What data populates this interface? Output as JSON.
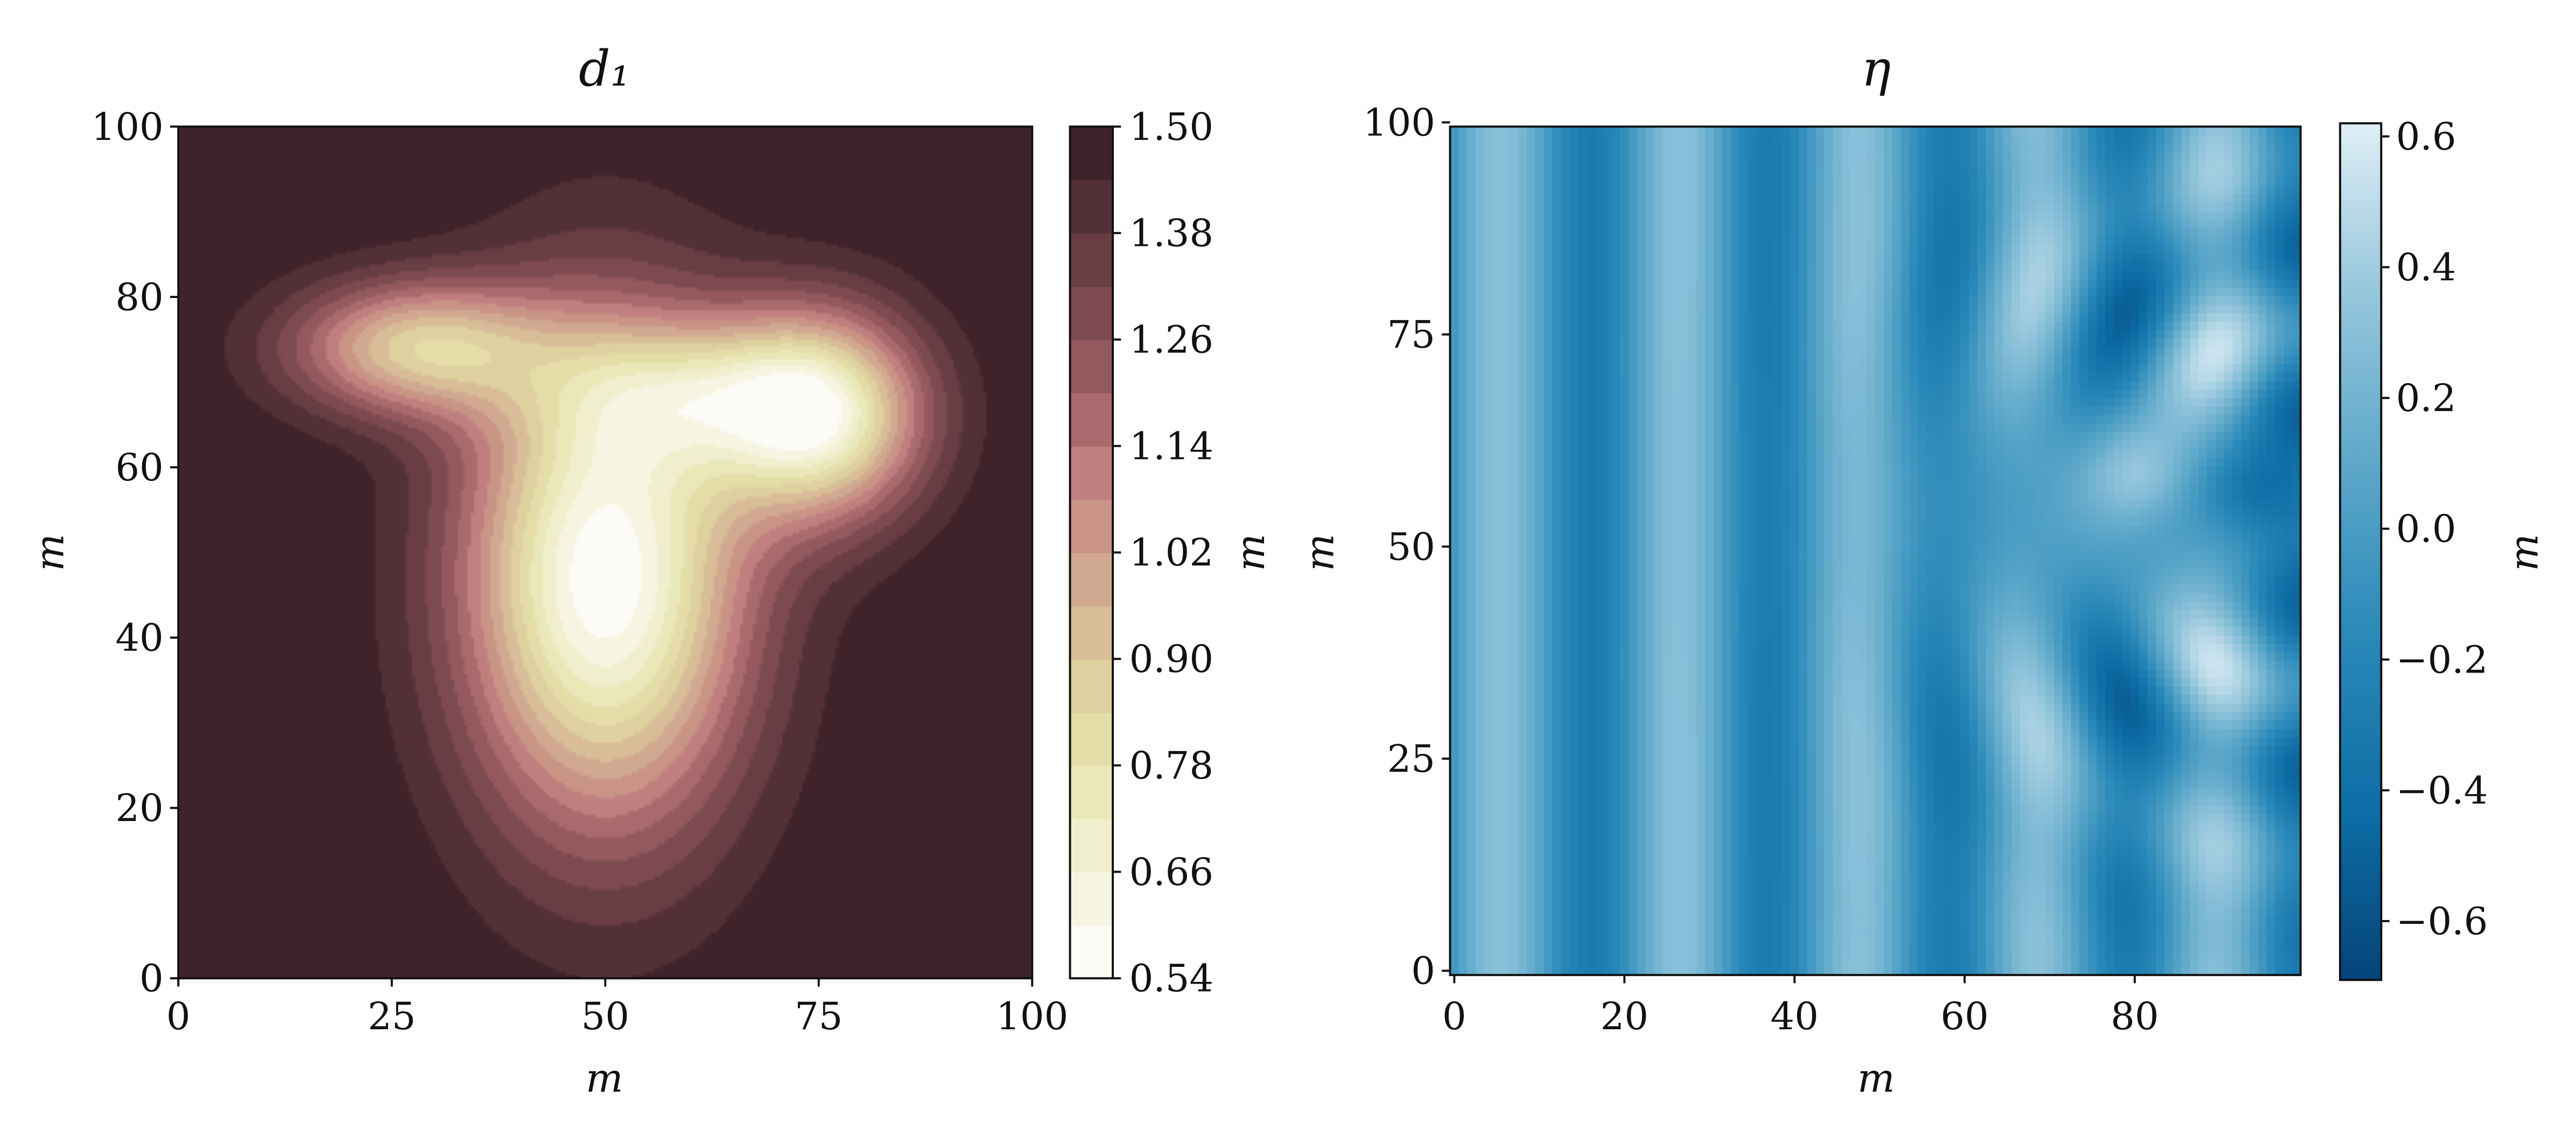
{
  "chart_data": [
    {
      "type": "heatmap",
      "style": "filled-contour",
      "title": "d₁",
      "xlabel": "m",
      "ylabel": "m",
      "xlim": [
        0,
        100
      ],
      "ylim": [
        0,
        100
      ],
      "x_ticks": [
        "0",
        "25",
        "50",
        "75",
        "100"
      ],
      "y_ticks": [
        "0",
        "20",
        "40",
        "60",
        "80",
        "100"
      ],
      "colorbar": {
        "label": "m",
        "range": [
          0.54,
          1.5
        ],
        "ticks": [
          "0.54",
          "0.66",
          "0.78",
          "0.90",
          "1.02",
          "1.14",
          "1.26",
          "1.38",
          "1.50"
        ],
        "levels": 16,
        "colors": [
          "#fcfbf5",
          "#f6f5e1",
          "#f0efcd",
          "#eae7b9",
          "#e5dda8",
          "#dfd0a0",
          "#d8bd98",
          "#d1a990",
          "#c99486",
          "#c07f7f",
          "#a96a6d",
          "#93595e",
          "#7d4a50",
          "#683d43",
          "#533037",
          "#40232a"
        ]
      },
      "field": {
        "baseline": 1.5,
        "bumps": [
          {
            "x": 50,
            "y": 47,
            "sx": 11.5,
            "sy": 20,
            "a": -0.96
          },
          {
            "x": 75,
            "y": 66,
            "sx": 8.5,
            "sy": 8.5,
            "a": -0.82
          },
          {
            "x": 28,
            "y": 74,
            "sx": 10.5,
            "sy": 5.5,
            "a": -0.6
          },
          {
            "x": 60,
            "y": 69,
            "sx": 11,
            "sy": 6,
            "a": -0.35
          }
        ],
        "minimum": {
          "x": 50,
          "y": 50,
          "value": 0.54
        }
      }
    },
    {
      "type": "heatmap",
      "title": "η",
      "xlabel": "m",
      "ylabel": "m",
      "xlim": [
        0,
        100
      ],
      "ylim": [
        0,
        100
      ],
      "x_ticks": [
        "0",
        "20",
        "40",
        "60",
        "80"
      ],
      "y_ticks": [
        "0",
        "25",
        "50",
        "75",
        "100"
      ],
      "colorbar": {
        "label": "m",
        "range": [
          -0.69,
          0.62
        ],
        "ticks": [
          "−0.6",
          "−0.4",
          "−0.2",
          "0.0",
          "0.2",
          "0.4",
          "0.6"
        ],
        "colors": [
          "#04447a",
          "#0d6ea6",
          "#2a89b9",
          "#5ca7c9",
          "#95c6dc",
          "#deeef5"
        ]
      },
      "field": {
        "grid": [
          100,
          100
        ],
        "base_wave": {
          "amplitude": 0.3,
          "wavelength": 21,
          "phase_x": 6
        },
        "scatter_center": {
          "x": 100,
          "y": 55
        },
        "scatter_wave": {
          "amplitude": 0.3,
          "wavelength": 21
        },
        "extremes": [
          {
            "x": 81,
            "y": 59,
            "value": 0.62
          },
          {
            "x": 94,
            "y": 57,
            "value": -0.69
          }
        ]
      }
    }
  ]
}
